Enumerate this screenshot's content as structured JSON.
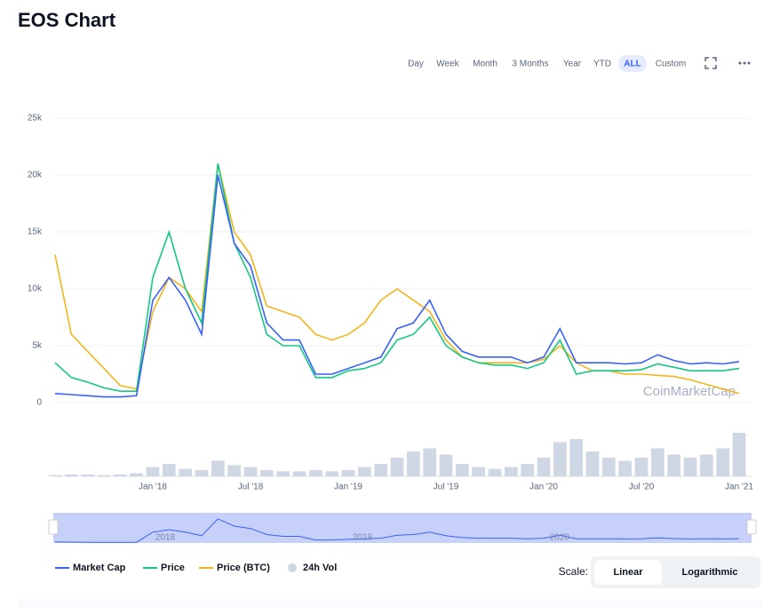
{
  "page_title": "EOS Chart",
  "range_buttons": [
    {
      "label": "Day"
    },
    {
      "label": "Week"
    },
    {
      "label": "Month"
    },
    {
      "label": "3 Months"
    },
    {
      "label": "Year"
    },
    {
      "label": "YTD"
    },
    {
      "label": "ALL",
      "active": true
    },
    {
      "label": "Custom"
    }
  ],
  "watermark": "CoinMarketCap",
  "navigator_labels": [
    "2018",
    "2019",
    "2020"
  ],
  "scale_label": "Scale:",
  "scale_options": [
    {
      "label": "Linear",
      "active": true
    },
    {
      "label": "Logarithmic"
    }
  ],
  "chart_data": {
    "type": "line",
    "categories": [
      null,
      null,
      null,
      null,
      null,
      null,
      "Jan '18",
      null,
      null,
      null,
      null,
      null,
      "Jul '18",
      null,
      null,
      null,
      null,
      null,
      "Jan '19",
      null,
      null,
      null,
      null,
      null,
      "Jul '19",
      null,
      null,
      null,
      null,
      null,
      "Jan '20",
      null,
      null,
      null,
      null,
      null,
      "Jul '20",
      null,
      null,
      null,
      null,
      null,
      "Jan '21"
    ],
    "ylim": [
      0,
      25000
    ],
    "yticks": [
      0,
      {
        "value": 5000,
        "label": "5k"
      },
      {
        "value": 10000,
        "label": "10k"
      },
      {
        "value": 15000,
        "label": "15k"
      },
      {
        "value": 20000,
        "label": "20k"
      },
      {
        "value": 25000,
        "label": "25k"
      }
    ],
    "y2lim": [
      0,
      100
    ],
    "grid": true,
    "series": [
      {
        "name": "Market Cap",
        "color": "#3861fb",
        "values": [
          800,
          700,
          600,
          500,
          500,
          600,
          9000,
          11000,
          9000,
          6000,
          20000,
          14000,
          12000,
          7000,
          5500,
          5500,
          2500,
          2500,
          3000,
          3500,
          4000,
          6500,
          7000,
          9000,
          6000,
          4500,
          4000,
          4000,
          4000,
          3500,
          4000,
          6500,
          3500,
          3500,
          3500,
          3400,
          3500,
          4200,
          3700,
          3400,
          3500,
          3400,
          3600
        ]
      },
      {
        "name": "Price",
        "color": "#16c784",
        "values": [
          3500,
          2200,
          1800,
          1300,
          1000,
          1000,
          11000,
          15000,
          10000,
          7000,
          21000,
          14000,
          11000,
          6000,
          5000,
          5000,
          2200,
          2200,
          2800,
          3000,
          3500,
          5500,
          6000,
          7500,
          5000,
          4000,
          3500,
          3300,
          3300,
          3000,
          3500,
          5500,
          2500,
          2800,
          2800,
          2800,
          2900,
          3400,
          3100,
          2800,
          2800,
          2800,
          3000
        ]
      },
      {
        "name": "Price (BTC)",
        "color": "#f3b51b",
        "values": [
          13000,
          6000,
          4500,
          3000,
          1500,
          1200,
          8000,
          11000,
          10000,
          8000,
          21000,
          15000,
          13000,
          8500,
          8000,
          7500,
          6000,
          5500,
          6000,
          7000,
          9000,
          10000,
          9000,
          8000,
          5500,
          4000,
          3500,
          3500,
          3500,
          3500,
          3800,
          5000,
          3500,
          2800,
          2800,
          2500,
          2500,
          2400,
          2300,
          2000,
          1600,
          1200,
          800
        ]
      },
      {
        "name": "24h Vol",
        "color": "#cfd6e4",
        "axis": "y2",
        "values": [
          2,
          3,
          3,
          2,
          3,
          5,
          15,
          20,
          12,
          10,
          25,
          18,
          15,
          10,
          8,
          8,
          10,
          8,
          10,
          15,
          20,
          30,
          40,
          45,
          35,
          20,
          15,
          12,
          15,
          20,
          30,
          55,
          60,
          40,
          30,
          25,
          30,
          45,
          35,
          30,
          35,
          45,
          70
        ]
      }
    ]
  }
}
